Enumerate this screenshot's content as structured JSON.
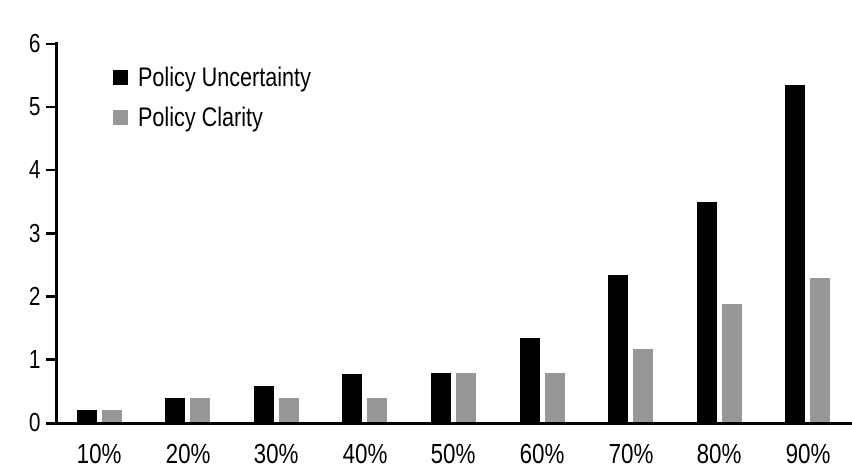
{
  "chart_data": {
    "type": "bar",
    "title": "",
    "xlabel": "",
    "ylabel": "",
    "categories": [
      "10%",
      "20%",
      "30%",
      "40%",
      "50%",
      "60%",
      "70%",
      "80%",
      "90%"
    ],
    "series": [
      {
        "name": "Policy Uncertainty",
        "color": "#000000",
        "values": [
          0.19,
          0.38,
          0.57,
          0.76,
          0.78,
          1.33,
          2.32,
          3.49,
          5.33
        ]
      },
      {
        "name": "Policy Clarity",
        "color": "#979797",
        "values": [
          0.19,
          0.38,
          0.38,
          0.38,
          0.77,
          0.77,
          1.15,
          1.87,
          2.28
        ]
      }
    ],
    "ylim": [
      0,
      6
    ],
    "yticks": [
      0,
      1,
      2,
      3,
      4,
      5,
      6
    ],
    "grid": false,
    "legend_position": "top-left",
    "axis_color": "#000000",
    "background_color": "#ffffff"
  }
}
